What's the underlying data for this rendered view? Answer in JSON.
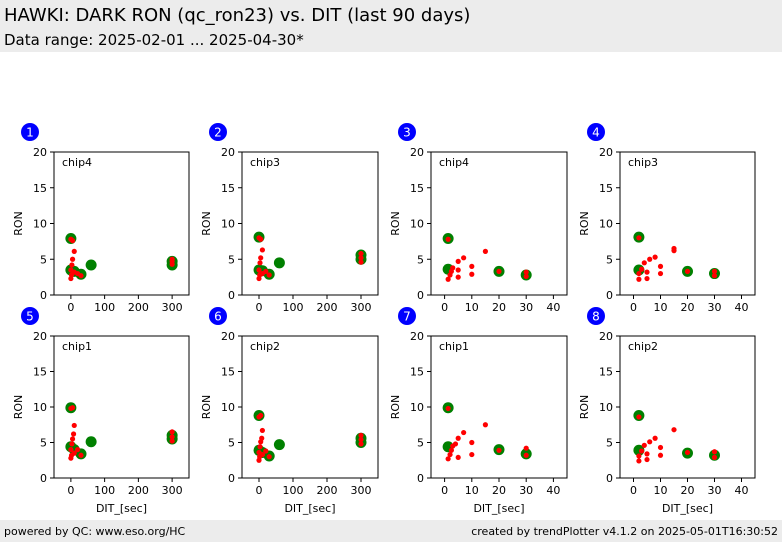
{
  "header": {
    "title": "HAWKI: DARK RON (qc_ron23) vs. DIT (last 90 days)",
    "subtitle": "Data range: 2025-02-01 ... 2025-04-30*"
  },
  "footer": {
    "left": "powered by QC: www.eso.org/HC",
    "right": "created by trendPlotter v4.1.2 on 2025-05-01T16:30:52"
  },
  "colors": {
    "badge": "#0000ff",
    "mean_marker": "#008000",
    "point": "#ff0000"
  },
  "chart_data": [
    {
      "type": "scatter",
      "badge": "1",
      "label": "chip4",
      "ylabel": "RON",
      "xlabel": "",
      "xlim": [
        -50,
        350
      ],
      "ylim": [
        0,
        20
      ],
      "xticks": [
        0,
        100,
        200,
        300
      ],
      "yticks": [
        0,
        5,
        10,
        15,
        20
      ],
      "points": [
        [
          0,
          2.3
        ],
        [
          2,
          2.8
        ],
        [
          0,
          3.5
        ],
        [
          3,
          4.2
        ],
        [
          5,
          5.0
        ],
        [
          10,
          6.1
        ],
        [
          0,
          7.8
        ],
        [
          5,
          7.6
        ],
        [
          10,
          3.2
        ],
        [
          20,
          3.0
        ],
        [
          30,
          2.7
        ],
        [
          300,
          4.7
        ],
        [
          300,
          5.0
        ],
        [
          300,
          4.3
        ]
      ],
      "means": [
        [
          0,
          7.9
        ],
        [
          0,
          3.5
        ],
        [
          10,
          3.3
        ],
        [
          30,
          2.9
        ],
        [
          60,
          4.2
        ],
        [
          300,
          4.2
        ],
        [
          300,
          4.7
        ]
      ]
    },
    {
      "type": "scatter",
      "badge": "2",
      "label": "chip3",
      "ylabel": "RON",
      "xlabel": "",
      "xlim": [
        -50,
        350
      ],
      "ylim": [
        0,
        20
      ],
      "xticks": [
        0,
        100,
        200,
        300
      ],
      "yticks": [
        0,
        5,
        10,
        15,
        20
      ],
      "points": [
        [
          0,
          2.3
        ],
        [
          2,
          2.8
        ],
        [
          0,
          3.5
        ],
        [
          3,
          4.5
        ],
        [
          5,
          5.2
        ],
        [
          10,
          6.3
        ],
        [
          0,
          8.0
        ],
        [
          5,
          7.8
        ],
        [
          10,
          3.0
        ],
        [
          20,
          3.3
        ],
        [
          30,
          2.8
        ],
        [
          300,
          5.8
        ],
        [
          300,
          5.2
        ],
        [
          300,
          4.6
        ]
      ],
      "means": [
        [
          0,
          8.1
        ],
        [
          0,
          3.5
        ],
        [
          10,
          3.4
        ],
        [
          30,
          2.9
        ],
        [
          60,
          4.5
        ],
        [
          300,
          5.0
        ],
        [
          300,
          5.6
        ]
      ]
    },
    {
      "type": "scatter",
      "badge": "3",
      "label": "chip4",
      "ylabel": "RON",
      "xlabel": "",
      "xlim": [
        -5,
        45
      ],
      "ylim": [
        0,
        20
      ],
      "xticks": [
        0,
        10,
        20,
        30,
        40
      ],
      "yticks": [
        0,
        5,
        10,
        15,
        20
      ],
      "points": [
        [
          1.3,
          2.2
        ],
        [
          2,
          2.8
        ],
        [
          2.5,
          3.3
        ],
        [
          3,
          3.8
        ],
        [
          5,
          4.7
        ],
        [
          7,
          5.2
        ],
        [
          5,
          2.5
        ],
        [
          5,
          3.5
        ],
        [
          10,
          2.9
        ],
        [
          10,
          4.0
        ],
        [
          15,
          6.1
        ],
        [
          1.3,
          7.8
        ],
        [
          20,
          3.3
        ],
        [
          30,
          3.2
        ],
        [
          30,
          2.6
        ]
      ],
      "means": [
        [
          1.3,
          7.9
        ],
        [
          1.3,
          3.6
        ],
        [
          20,
          3.3
        ],
        [
          30,
          2.8
        ]
      ]
    },
    {
      "type": "scatter",
      "badge": "4",
      "label": "chip3",
      "ylabel": "RON",
      "xlabel": "",
      "xlim": [
        -5,
        45
      ],
      "ylim": [
        0,
        20
      ],
      "xticks": [
        0,
        10,
        20,
        30,
        40
      ],
      "yticks": [
        0,
        5,
        10,
        15,
        20
      ],
      "points": [
        [
          2,
          2.2
        ],
        [
          2,
          3.0
        ],
        [
          3,
          3.6
        ],
        [
          4,
          4.5
        ],
        [
          5,
          3.2
        ],
        [
          5,
          2.3
        ],
        [
          6,
          5.0
        ],
        [
          8,
          5.3
        ],
        [
          10,
          3.0
        ],
        [
          10,
          4.0
        ],
        [
          15,
          6.5
        ],
        [
          15,
          6.2
        ],
        [
          2,
          8.0
        ],
        [
          20,
          3.3
        ],
        [
          30,
          3.3
        ],
        [
          30,
          2.7
        ]
      ],
      "means": [
        [
          2,
          8.1
        ],
        [
          2,
          3.5
        ],
        [
          20,
          3.3
        ],
        [
          30,
          3.0
        ]
      ]
    },
    {
      "type": "scatter",
      "badge": "5",
      "label": "chip1",
      "ylabel": "RON",
      "xlabel": "DIT_[sec]",
      "xlim": [
        -50,
        350
      ],
      "ylim": [
        0,
        20
      ],
      "xticks": [
        0,
        100,
        200,
        300
      ],
      "yticks": [
        0,
        5,
        10,
        15,
        20
      ],
      "points": [
        [
          0,
          2.8
        ],
        [
          2,
          3.2
        ],
        [
          0,
          4.0
        ],
        [
          3,
          4.8
        ],
        [
          5,
          5.5
        ],
        [
          8,
          6.2
        ],
        [
          10,
          7.4
        ],
        [
          0,
          9.8
        ],
        [
          5,
          9.9
        ],
        [
          10,
          3.5
        ],
        [
          20,
          4.0
        ],
        [
          30,
          3.2
        ],
        [
          300,
          6.5
        ],
        [
          300,
          5.8
        ],
        [
          300,
          5.2
        ]
      ],
      "means": [
        [
          0,
          9.9
        ],
        [
          0,
          4.4
        ],
        [
          10,
          4.0
        ],
        [
          30,
          3.4
        ],
        [
          60,
          5.1
        ],
        [
          300,
          5.5
        ],
        [
          300,
          6.0
        ]
      ]
    },
    {
      "type": "scatter",
      "badge": "6",
      "label": "chip2",
      "ylabel": "RON",
      "xlabel": "DIT_[sec]",
      "xlim": [
        -50,
        350
      ],
      "ylim": [
        0,
        20
      ],
      "xticks": [
        0,
        100,
        200,
        300
      ],
      "yticks": [
        0,
        5,
        10,
        15,
        20
      ],
      "points": [
        [
          0,
          2.5
        ],
        [
          2,
          3.0
        ],
        [
          0,
          3.6
        ],
        [
          3,
          4.4
        ],
        [
          5,
          5.1
        ],
        [
          8,
          5.6
        ],
        [
          10,
          6.7
        ],
        [
          0,
          8.6
        ],
        [
          5,
          8.8
        ],
        [
          10,
          3.3
        ],
        [
          20,
          3.8
        ],
        [
          30,
          3.0
        ],
        [
          300,
          6.0
        ],
        [
          300,
          5.4
        ],
        [
          300,
          4.8
        ]
      ],
      "means": [
        [
          0,
          8.8
        ],
        [
          0,
          3.9
        ],
        [
          10,
          3.6
        ],
        [
          30,
          3.1
        ],
        [
          60,
          4.7
        ],
        [
          300,
          5.0
        ],
        [
          300,
          5.6
        ]
      ]
    },
    {
      "type": "scatter",
      "badge": "7",
      "label": "chip1",
      "ylabel": "RON",
      "xlabel": "DIT_[sec]",
      "xlim": [
        -5,
        45
      ],
      "ylim": [
        0,
        20
      ],
      "xticks": [
        0,
        10,
        20,
        30,
        40
      ],
      "yticks": [
        0,
        5,
        10,
        15,
        20
      ],
      "points": [
        [
          1.3,
          2.7
        ],
        [
          2,
          3.3
        ],
        [
          2.5,
          3.9
        ],
        [
          3,
          4.5
        ],
        [
          5,
          5.6
        ],
        [
          5,
          2.9
        ],
        [
          4,
          4.8
        ],
        [
          7,
          6.4
        ],
        [
          10,
          3.3
        ],
        [
          10,
          5.0
        ],
        [
          15,
          7.5
        ],
        [
          1.3,
          9.8
        ],
        [
          20,
          3.9
        ],
        [
          30,
          4.2
        ],
        [
          30,
          3.2
        ]
      ],
      "means": [
        [
          1.3,
          9.9
        ],
        [
          1.3,
          4.4
        ],
        [
          20,
          4.0
        ],
        [
          30,
          3.4
        ]
      ]
    },
    {
      "type": "scatter",
      "badge": "8",
      "label": "chip2",
      "ylabel": "RON",
      "xlabel": "DIT_[sec]",
      "xlim": [
        -5,
        45
      ],
      "ylim": [
        0,
        20
      ],
      "xticks": [
        0,
        10,
        20,
        30,
        40
      ],
      "yticks": [
        0,
        5,
        10,
        15,
        20
      ],
      "points": [
        [
          2,
          2.4
        ],
        [
          2,
          3.1
        ],
        [
          3,
          3.8
        ],
        [
          4,
          4.6
        ],
        [
          5,
          3.4
        ],
        [
          5,
          2.6
        ],
        [
          6,
          5.1
        ],
        [
          8,
          5.6
        ],
        [
          10,
          3.2
        ],
        [
          10,
          4.3
        ],
        [
          15,
          6.8
        ],
        [
          2,
          8.6
        ],
        [
          20,
          3.6
        ],
        [
          30,
          3.7
        ],
        [
          30,
          2.9
        ]
      ],
      "means": [
        [
          2,
          8.8
        ],
        [
          2,
          3.9
        ],
        [
          20,
          3.5
        ],
        [
          30,
          3.2
        ]
      ]
    }
  ]
}
